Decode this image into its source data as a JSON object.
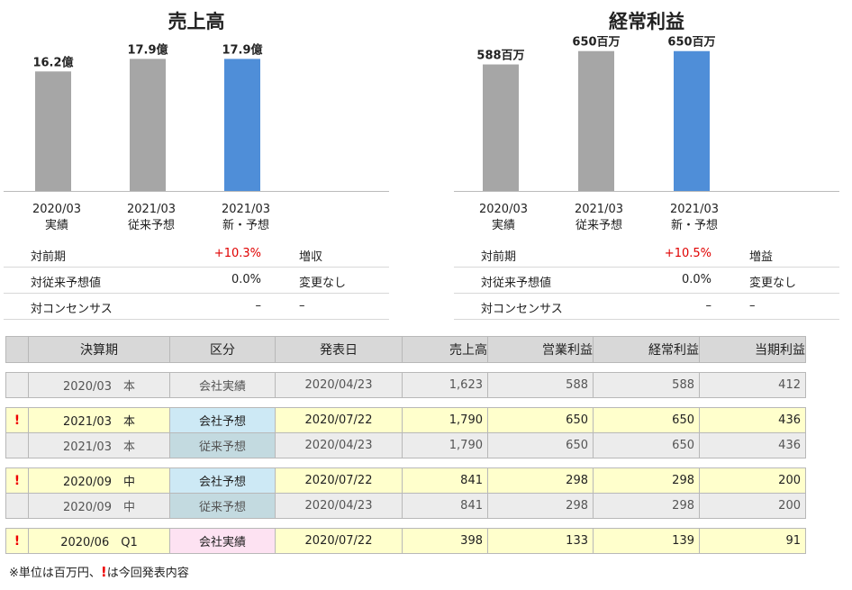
{
  "chart_data": [
    {
      "type": "bar",
      "title": "売上高",
      "categories": [
        [
          "2020/03",
          "実績"
        ],
        [
          "2021/03",
          "従来予想"
        ],
        [
          "2021/03",
          "新・予想"
        ]
      ],
      "values": [
        16.2,
        17.9,
        17.9
      ],
      "value_labels": [
        "16.2億",
        "17.9億",
        "17.9億"
      ],
      "unit": "億",
      "colors": [
        "#a6a6a6",
        "#a6a6a6",
        "#4f8ed8"
      ],
      "ylim": [
        0,
        21
      ],
      "grid": false,
      "comparison": [
        {
          "label": "対前期",
          "value": "+10.3%",
          "note": "増収",
          "highlight": true
        },
        {
          "label": "対従来予想値",
          "value": "0.0%",
          "note": "変更なし",
          "highlight": false
        },
        {
          "label": "対コンセンサス",
          "value": "–",
          "note": "–",
          "highlight": false
        }
      ]
    },
    {
      "type": "bar",
      "title": "経常利益",
      "categories": [
        [
          "2020/03",
          "実績"
        ],
        [
          "2021/03",
          "従来予想"
        ],
        [
          "2021/03",
          "新・予想"
        ]
      ],
      "values": [
        588,
        650,
        650
      ],
      "value_labels": [
        "588百万",
        "650百万",
        "650百万"
      ],
      "unit": "百万",
      "colors": [
        "#a6a6a6",
        "#a6a6a6",
        "#4f8ed8"
      ],
      "ylim": [
        0,
        720
      ],
      "grid": false,
      "comparison": [
        {
          "label": "対前期",
          "value": "+10.5%",
          "note": "増益",
          "highlight": true
        },
        {
          "label": "対従来予想値",
          "value": "0.0%",
          "note": "変更なし",
          "highlight": false
        },
        {
          "label": "対コンセンサス",
          "value": "–",
          "note": "–",
          "highlight": false
        }
      ]
    }
  ],
  "table": {
    "headers": [
      "決算期",
      "区分",
      "発表日",
      "売上高",
      "営業利益",
      "経常利益",
      "当期利益"
    ],
    "groups": [
      [
        {
          "mark": "",
          "period": "2020/03",
          "type": "本",
          "kubun": "会社実績",
          "kubun_style": "actual",
          "date": "2020/04/23",
          "sales": "1,623",
          "op": "588",
          "ord": "588",
          "net": "412",
          "row_style": "gray"
        }
      ],
      [
        {
          "mark": "!",
          "period": "2021/03",
          "type": "本",
          "kubun": "会社予想",
          "kubun_style": "new",
          "date": "2020/07/22",
          "sales": "1,790",
          "op": "650",
          "ord": "650",
          "net": "436",
          "row_style": "yellow"
        },
        {
          "mark": "",
          "period": "2021/03",
          "type": "本",
          "kubun": "従来予想",
          "kubun_style": "old",
          "date": "2020/04/23",
          "sales": "1,790",
          "op": "650",
          "ord": "650",
          "net": "436",
          "row_style": "gray"
        }
      ],
      [
        {
          "mark": "!",
          "period": "2020/09",
          "type": "中",
          "kubun": "会社予想",
          "kubun_style": "new",
          "date": "2020/07/22",
          "sales": "841",
          "op": "298",
          "ord": "298",
          "net": "200",
          "row_style": "yellow"
        },
        {
          "mark": "",
          "period": "2020/09",
          "type": "中",
          "kubun": "従来予想",
          "kubun_style": "old",
          "date": "2020/04/23",
          "sales": "841",
          "op": "298",
          "ord": "298",
          "net": "200",
          "row_style": "gray"
        }
      ],
      [
        {
          "mark": "!",
          "period": "2020/06",
          "type": "Q1",
          "kubun": "会社実績",
          "kubun_style": "pink",
          "date": "2020/07/22",
          "sales": "398",
          "op": "133",
          "ord": "139",
          "net": "91",
          "row_style": "yellow"
        }
      ]
    ]
  },
  "footnote": {
    "before": "※単位は百万円、",
    "mark": "!",
    "after": "は今回発表内容"
  }
}
